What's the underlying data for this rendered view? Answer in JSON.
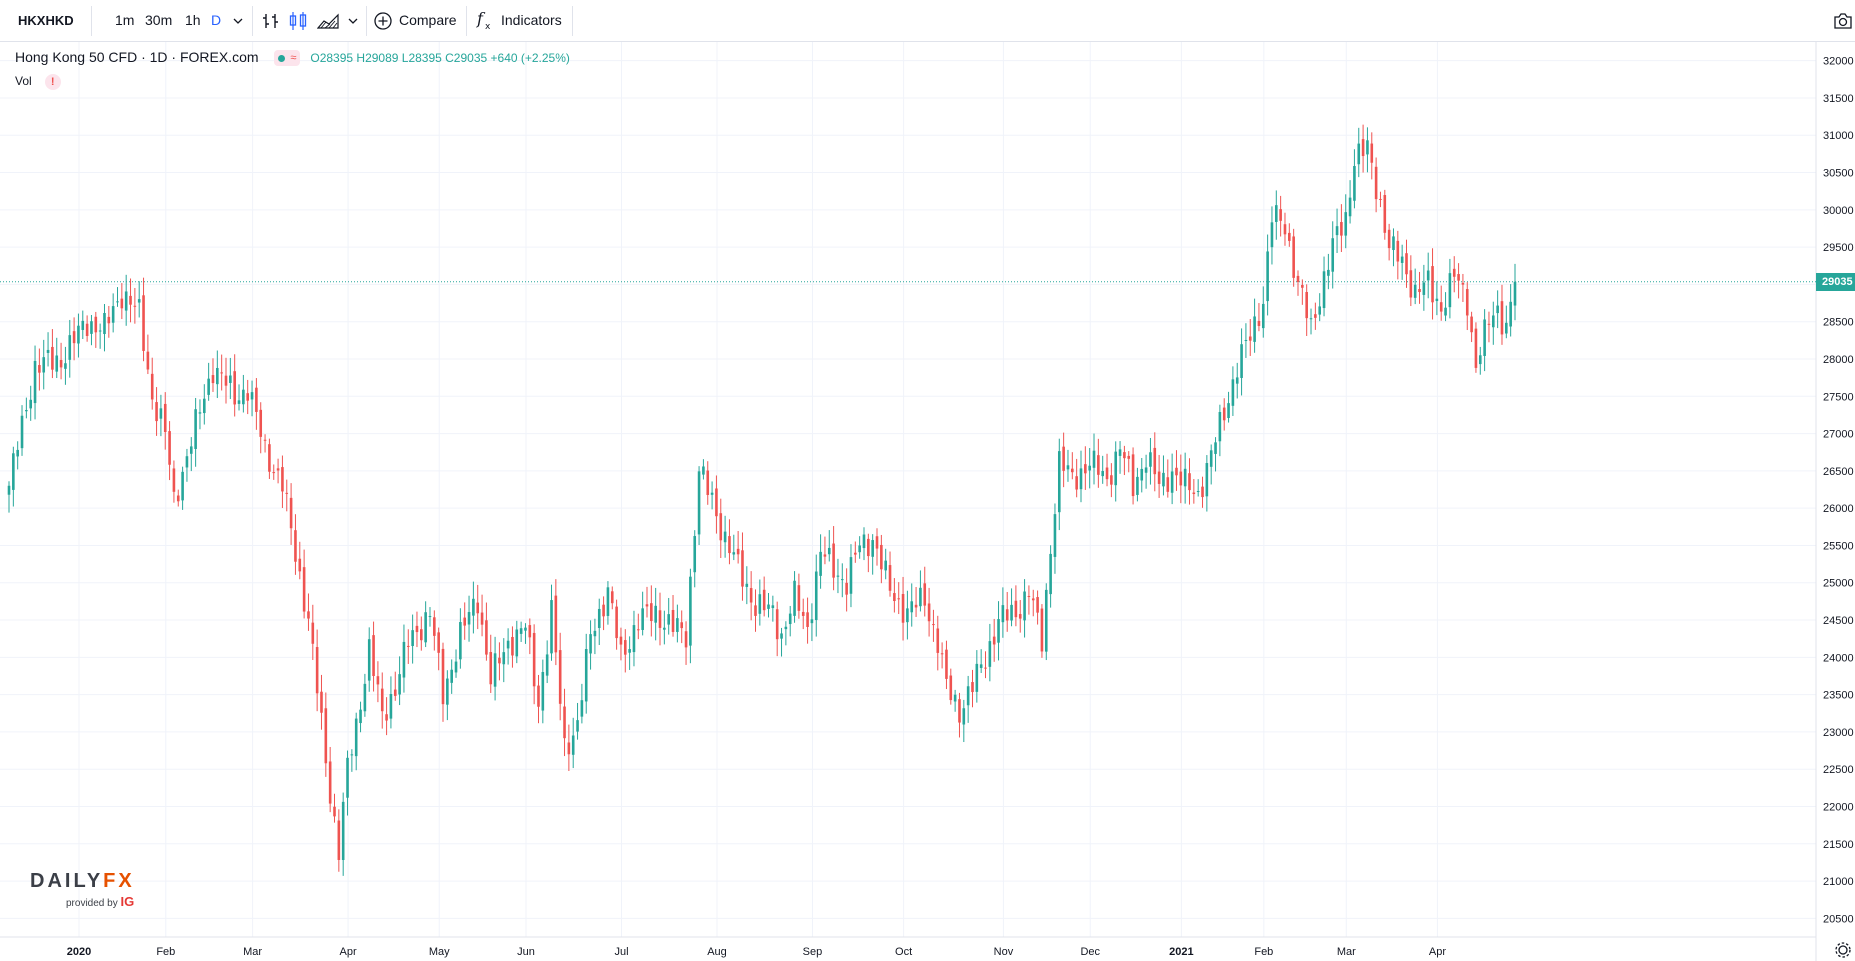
{
  "toolbar": {
    "symbol": "HKXHKD",
    "timeframes": [
      "1m",
      "30m",
      "1h",
      "D"
    ],
    "active_timeframe": "D",
    "compare_label": "Compare",
    "indicators_label": "Indicators"
  },
  "legend": {
    "title": "Hong Kong 50 CFD · 1D · FOREX.com",
    "ohlc": "O28395 H29089 L28395 C29035 +640 (+2.25%)",
    "vol_label": "Vol",
    "vol_warning": "!",
    "pill_symbol": "≈"
  },
  "price_tag": "29035",
  "watermark": {
    "logo_main": "DAILY",
    "logo_accent": "FX",
    "provided_by": "provided by",
    "provider": "IG"
  },
  "colors": {
    "up": "#26a69a",
    "down": "#ef5350",
    "grid": "#f0f3fa",
    "last_price_line": "#26a69a"
  },
  "icons": [
    "bar-style-icon",
    "candles-icon",
    "area-chart-icon",
    "chevron-down-icon",
    "plus-circle-icon",
    "fx-icon",
    "camera-icon",
    "settings-icon"
  ],
  "chart_data": {
    "type": "candlestick",
    "y_ticks": [
      "32000",
      "31500",
      "31000",
      "30500",
      "30000",
      "29500",
      "29000",
      "28500",
      "28000",
      "27500",
      "27000",
      "26500",
      "26000",
      "25500",
      "25000",
      "24500",
      "24000",
      "23500",
      "23000",
      "22500",
      "22000",
      "21500",
      "21000",
      "20500"
    ],
    "x_ticks": [
      "2020",
      "Feb",
      "Mar",
      "Apr",
      "May",
      "Jun",
      "Jul",
      "Aug",
      "Sep",
      "Oct",
      "Nov",
      "Dec",
      "2021",
      "Feb",
      "Mar",
      "Apr"
    ],
    "ylim": [
      20250,
      32250
    ],
    "last_price": 29035,
    "anchors": [
      [
        0,
        26300
      ],
      [
        6,
        27900
      ],
      [
        12,
        28000
      ],
      [
        18,
        28500
      ],
      [
        22,
        28400
      ],
      [
        26,
        28900
      ],
      [
        30,
        28600
      ],
      [
        33,
        27500
      ],
      [
        36,
        27000
      ],
      [
        38,
        26100
      ],
      [
        42,
        26900
      ],
      [
        47,
        27900
      ],
      [
        52,
        27500
      ],
      [
        55,
        27600
      ],
      [
        59,
        26800
      ],
      [
        63,
        26300
      ],
      [
        67,
        25100
      ],
      [
        69,
        24500
      ],
      [
        72,
        23100
      ],
      [
        74,
        22200
      ],
      [
        76,
        21400
      ],
      [
        78,
        22500
      ],
      [
        80,
        23100
      ],
      [
        83,
        24100
      ],
      [
        86,
        23200
      ],
      [
        89,
        23600
      ],
      [
        92,
        24200
      ],
      [
        97,
        24600
      ],
      [
        100,
        23500
      ],
      [
        104,
        24300
      ],
      [
        108,
        24800
      ],
      [
        111,
        23700
      ],
      [
        115,
        24200
      ],
      [
        119,
        24400
      ],
      [
        122,
        23400
      ],
      [
        125,
        24600
      ],
      [
        128,
        22800
      ],
      [
        131,
        23100
      ],
      [
        134,
        24300
      ],
      [
        138,
        24900
      ],
      [
        141,
        24000
      ],
      [
        145,
        24500
      ],
      [
        149,
        24600
      ],
      [
        153,
        24400
      ],
      [
        156,
        24300
      ],
      [
        159,
        26500
      ],
      [
        162,
        26100
      ],
      [
        165,
        25600
      ],
      [
        168,
        25200
      ],
      [
        172,
        24700
      ],
      [
        176,
        24600
      ],
      [
        178,
        24300
      ],
      [
        181,
        24800
      ],
      [
        184,
        24400
      ],
      [
        187,
        25400
      ],
      [
        190,
        25200
      ],
      [
        193,
        25000
      ],
      [
        196,
        25500
      ],
      [
        199,
        25600
      ],
      [
        203,
        24900
      ],
      [
        207,
        24600
      ],
      [
        211,
        24800
      ],
      [
        214,
        24200
      ],
      [
        216,
        23600
      ],
      [
        219,
        23300
      ],
      [
        222,
        23600
      ],
      [
        225,
        24000
      ],
      [
        228,
        24500
      ],
      [
        232,
        24600
      ],
      [
        235,
        24900
      ],
      [
        238,
        24200
      ],
      [
        240,
        25500
      ],
      [
        242,
        26600
      ],
      [
        245,
        26400
      ],
      [
        249,
        26600
      ],
      [
        253,
        26400
      ],
      [
        256,
        26800
      ],
      [
        259,
        26300
      ],
      [
        262,
        26700
      ],
      [
        265,
        26300
      ],
      [
        268,
        26500
      ],
      [
        271,
        26300
      ],
      [
        274,
        26200
      ],
      [
        277,
        26700
      ],
      [
        280,
        27300
      ],
      [
        283,
        27900
      ],
      [
        286,
        28300
      ],
      [
        289,
        28800
      ],
      [
        291,
        29900
      ],
      [
        294,
        29800
      ],
      [
        297,
        29000
      ],
      [
        300,
        28400
      ],
      [
        303,
        29100
      ],
      [
        305,
        29500
      ],
      [
        308,
        29900
      ],
      [
        310,
        30700
      ],
      [
        313,
        30800
      ],
      [
        316,
        30100
      ],
      [
        318,
        29500
      ],
      [
        321,
        29300
      ],
      [
        324,
        28900
      ],
      [
        327,
        29000
      ],
      [
        330,
        28700
      ],
      [
        333,
        29100
      ],
      [
        336,
        28800
      ],
      [
        338,
        27900
      ],
      [
        341,
        28500
      ],
      [
        343,
        28700
      ],
      [
        345,
        28400
      ],
      [
        347,
        29035
      ]
    ]
  }
}
